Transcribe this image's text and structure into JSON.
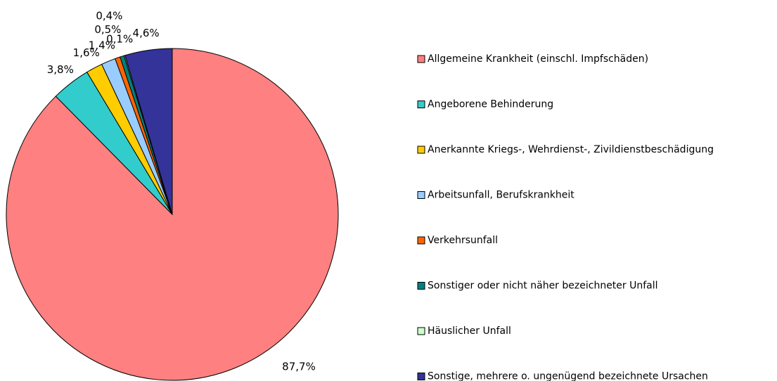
{
  "chart_data": {
    "type": "pie",
    "categories": [
      "Allgemeine Krankheit (einschl. Impfschäden)",
      "Angeborene Behinderung",
      "Anerkannte Kriegs-, Wehrdienst-, Zivildienstbeschädigung",
      "Arbeitsunfall, Berufskrankheit",
      "Verkehrsunfall",
      "Sonstiger oder nicht näher bezeichneter Unfall",
      "Häuslicher Unfall",
      "Sonstige, mehrere o. ungenügend bezeichnete Ursachen"
    ],
    "values": [
      87.7,
      3.8,
      1.6,
      1.4,
      0.5,
      0.4,
      0.1,
      4.6
    ],
    "value_labels": [
      "87,7%",
      "3,8%",
      "1,6%",
      "1,4%",
      "0,5%",
      "0,4%",
      "0,1%",
      "4,6%"
    ],
    "colors": [
      "#ff8080",
      "#33cccc",
      "#ffcc00",
      "#99ccff",
      "#ff6600",
      "#008080",
      "#ccffcc",
      "#333399"
    ],
    "legend": "right"
  }
}
